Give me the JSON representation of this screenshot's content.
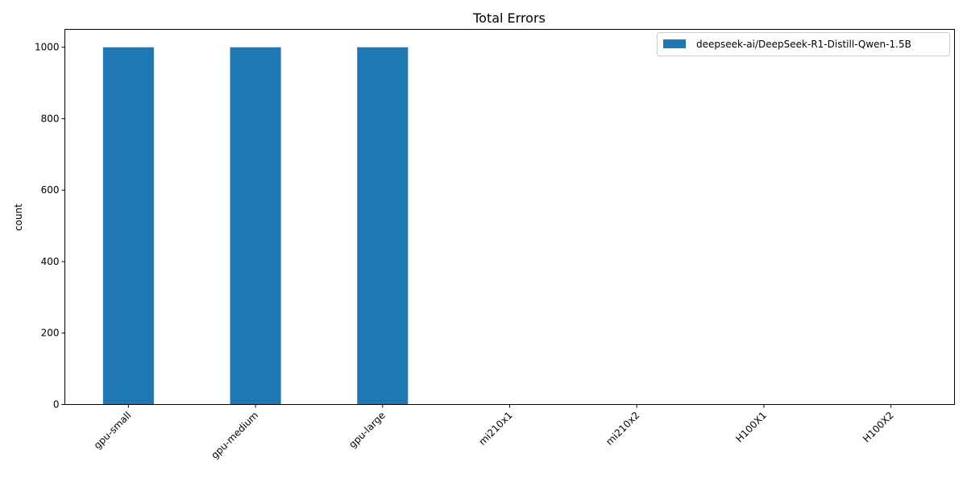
{
  "chart_data": {
    "type": "bar",
    "title": "Total Errors",
    "xlabel": "",
    "ylabel": "count",
    "categories": [
      "gpu-small",
      "gpu-medium",
      "gpu-large",
      "mi210x1",
      "mi210x2",
      "H100X1",
      "H100X2"
    ],
    "series": [
      {
        "name": "deepseek-ai/DeepSeek-R1-Distill-Qwen-1.5B",
        "values": [
          1000,
          1000,
          1000,
          0,
          0,
          0,
          0
        ],
        "color": "#1f77b4"
      }
    ],
    "ylim": [
      0,
      1050
    ],
    "yticks": [
      0,
      200,
      400,
      600,
      800,
      1000
    ],
    "grid": false,
    "legend_position": "top-right"
  }
}
